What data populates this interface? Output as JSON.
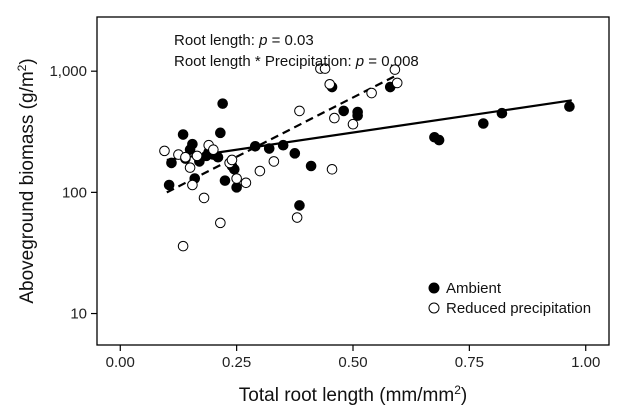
{
  "chart_data": {
    "type": "scatter",
    "xlabel": "Total root length (mm/mm",
    "xlabel_sup": "2",
    "xlabel_end": ")",
    "ylabel": "Aboveground biomass (g/m",
    "ylabel_sup": "2",
    "ylabel_end": ")",
    "x_ticks": [
      "0.00",
      "0.25",
      "0.50",
      "0.75",
      "1.00"
    ],
    "x_tick_values": [
      0,
      0.25,
      0.5,
      0.75,
      1.0
    ],
    "y_ticks": [
      "10",
      "100",
      "1,000"
    ],
    "y_tick_values": [
      10,
      100,
      1000
    ],
    "xlim": [
      -0.05,
      1.05
    ],
    "ylim": [
      5.5,
      2800
    ],
    "y_scale": "log",
    "legend_position": "bottom-right",
    "annotation": {
      "line1_prefix": "Root length: ",
      "line1_p": "p",
      "line1_suffix": " = 0.03",
      "line2_prefix": "Root length * Precipitation: ",
      "line2_p": "p",
      "line2_suffix": " = 0.008"
    },
    "series": [
      {
        "name": "Ambient",
        "marker": "filled-circle",
        "color": "#000000",
        "fit": {
          "style": "solid",
          "x": [
            0.1,
            0.97
          ],
          "y": [
            185,
            575
          ]
        },
        "points": [
          [
            0.105,
            115
          ],
          [
            0.11,
            175
          ],
          [
            0.135,
            300
          ],
          [
            0.14,
            190
          ],
          [
            0.15,
            225
          ],
          [
            0.155,
            250
          ],
          [
            0.16,
            130
          ],
          [
            0.17,
            180
          ],
          [
            0.185,
            200
          ],
          [
            0.19,
            215
          ],
          [
            0.2,
            205
          ],
          [
            0.21,
            195
          ],
          [
            0.215,
            310
          ],
          [
            0.22,
            540
          ],
          [
            0.225,
            125
          ],
          [
            0.24,
            165
          ],
          [
            0.245,
            155
          ],
          [
            0.25,
            110
          ],
          [
            0.29,
            240
          ],
          [
            0.32,
            230
          ],
          [
            0.35,
            245
          ],
          [
            0.375,
            210
          ],
          [
            0.385,
            78
          ],
          [
            0.41,
            165
          ],
          [
            0.455,
            740
          ],
          [
            0.48,
            470
          ],
          [
            0.51,
            430
          ],
          [
            0.51,
            460
          ],
          [
            0.58,
            740
          ],
          [
            0.675,
            285
          ],
          [
            0.685,
            270
          ],
          [
            0.78,
            370
          ],
          [
            0.82,
            450
          ],
          [
            0.965,
            510
          ]
        ]
      },
      {
        "name": "Reduced precipitation",
        "marker": "open-circle",
        "color": "#000000",
        "fit": {
          "style": "dashed",
          "x": [
            0.1,
            0.59
          ],
          "y": [
            100,
            910
          ]
        },
        "points": [
          [
            0.095,
            220
          ],
          [
            0.125,
            205
          ],
          [
            0.135,
            36
          ],
          [
            0.14,
            195
          ],
          [
            0.15,
            160
          ],
          [
            0.155,
            115
          ],
          [
            0.165,
            200
          ],
          [
            0.18,
            90
          ],
          [
            0.19,
            245
          ],
          [
            0.2,
            225
          ],
          [
            0.215,
            56
          ],
          [
            0.235,
            175
          ],
          [
            0.24,
            185
          ],
          [
            0.25,
            130
          ],
          [
            0.27,
            120
          ],
          [
            0.3,
            150
          ],
          [
            0.33,
            180
          ],
          [
            0.38,
            62
          ],
          [
            0.385,
            470
          ],
          [
            0.43,
            1050
          ],
          [
            0.44,
            1050
          ],
          [
            0.45,
            780
          ],
          [
            0.46,
            410
          ],
          [
            0.455,
            155
          ],
          [
            0.5,
            365
          ],
          [
            0.54,
            660
          ],
          [
            0.59,
            1030
          ],
          [
            0.595,
            800
          ]
        ]
      }
    ]
  }
}
